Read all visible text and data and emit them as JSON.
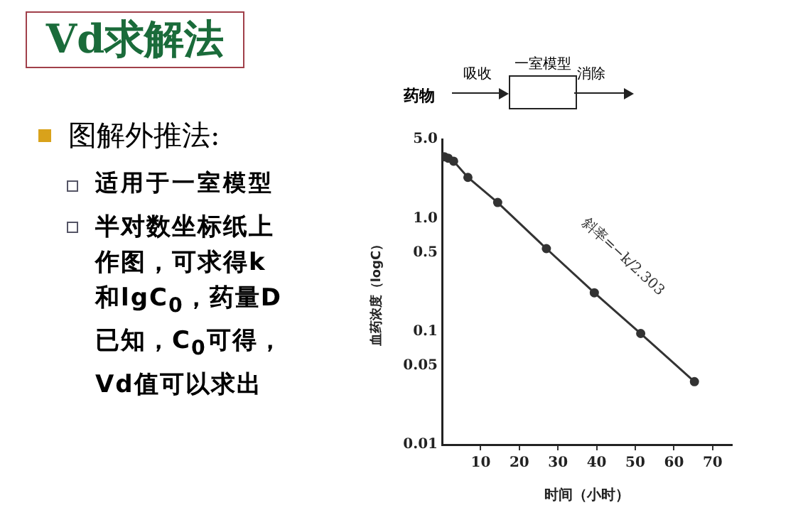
{
  "chart_data": {
    "type": "line",
    "title": "Vd求解法",
    "xlabel": "时间（小时）",
    "ylabel": "血药浓度（logC）",
    "annotations": [
      "图解外推法:",
      "适用于一室模型",
      "半对数坐标纸上作图，可求得k和lgC$_{0}$，药量D 已知，C$_{0}$可得，Vd值可以求出",
      "药物",
      "吸收",
      "一室模型",
      "消除",
      "斜率=−k/2.303"
    ],
    "x": [
      0.6,
      1.6,
      3.0,
      6.7,
      14.4,
      27,
      39.4,
      51.4,
      65.3
    ],
    "series": [
      {
        "color": "#333333",
        "values": [
          3.5,
          3.4,
          3.2,
          2.3,
          1.38,
          0.54,
          0.22,
          0.096,
          0.036
        ]
      }
    ],
    "log": "y",
    "xlim": [
      0,
      75
    ],
    "xticks": [
      10,
      20,
      30,
      40,
      50,
      60,
      70
    ],
    "ylim": [
      0.01,
      5
    ],
    "yticks": [
      {
        "value": 5,
        "label": "5.0"
      },
      {
        "value": 1,
        "label": "1.0"
      },
      0.5,
      0.1,
      0.05,
      0.01
    ],
    "grid": false,
    "legend": false,
    "marker": "circle",
    "line_style": "solid"
  }
}
